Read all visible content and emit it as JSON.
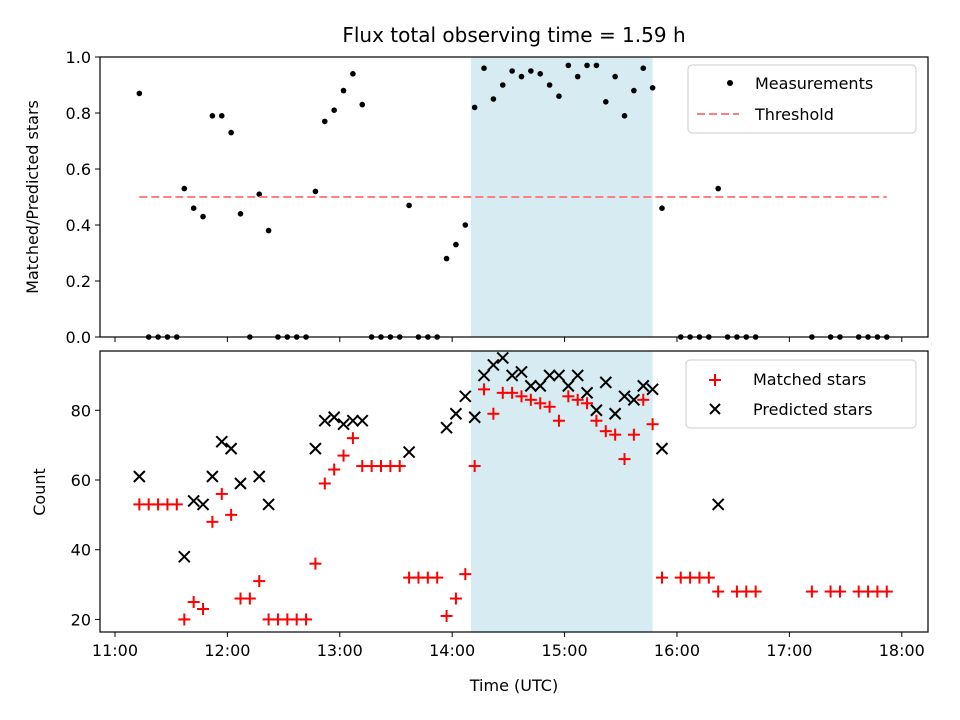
{
  "chart_data": [
    {
      "type": "scatter",
      "title": "Flux total observing time = 1.59 h",
      "xlabel": "",
      "ylabel": "Matched/Predicted stars",
      "x_unit": "time (UTC)",
      "ylim": [
        0,
        1.0
      ],
      "yticks": [
        "0.0",
        "0.2",
        "0.4",
        "0.6",
        "0.8",
        "1.0"
      ],
      "legend_position": "upper-right",
      "highlight_span": [
        "14:10",
        "15:47"
      ],
      "highlight_color": "#add8e6",
      "series": [
        {
          "name": "Measurements",
          "marker": "dot",
          "color": "#000000",
          "points": [
            [
              "11:13",
              0.87
            ],
            [
              "11:18",
              0.0
            ],
            [
              "11:23",
              0.0
            ],
            [
              "11:28",
              0.0
            ],
            [
              "11:33",
              0.0
            ],
            [
              "11:37",
              0.53
            ],
            [
              "11:42",
              0.46
            ],
            [
              "11:47",
              0.43
            ],
            [
              "11:52",
              0.79
            ],
            [
              "11:57",
              0.79
            ],
            [
              "12:02",
              0.73
            ],
            [
              "12:07",
              0.44
            ],
            [
              "12:12",
              0.0
            ],
            [
              "12:17",
              0.51
            ],
            [
              "12:22",
              0.38
            ],
            [
              "12:27",
              0.0
            ],
            [
              "12:32",
              0.0
            ],
            [
              "12:37",
              0.0
            ],
            [
              "12:42",
              0.0
            ],
            [
              "12:47",
              0.52
            ],
            [
              "12:52",
              0.77
            ],
            [
              "12:57",
              0.81
            ],
            [
              "13:02",
              0.88
            ],
            [
              "13:07",
              0.94
            ],
            [
              "13:12",
              0.83
            ],
            [
              "13:17",
              0.0
            ],
            [
              "13:22",
              0.0
            ],
            [
              "13:27",
              0.0
            ],
            [
              "13:32",
              0.0
            ],
            [
              "13:37",
              0.47
            ],
            [
              "13:42",
              0.0
            ],
            [
              "13:47",
              0.0
            ],
            [
              "13:52",
              0.0
            ],
            [
              "13:57",
              0.28
            ],
            [
              "14:02",
              0.33
            ],
            [
              "14:07",
              0.4
            ],
            [
              "14:12",
              0.82
            ],
            [
              "14:17",
              0.96
            ],
            [
              "14:22",
              0.85
            ],
            [
              "14:27",
              0.9
            ],
            [
              "14:32",
              0.95
            ],
            [
              "14:37",
              0.93
            ],
            [
              "14:42",
              0.95
            ],
            [
              "14:47",
              0.94
            ],
            [
              "14:52",
              0.9
            ],
            [
              "14:57",
              0.86
            ],
            [
              "15:02",
              0.97
            ],
            [
              "15:07",
              0.93
            ],
            [
              "15:12",
              0.97
            ],
            [
              "15:17",
              0.97
            ],
            [
              "15:22",
              0.84
            ],
            [
              "15:27",
              0.93
            ],
            [
              "15:32",
              0.79
            ],
            [
              "15:37",
              0.88
            ],
            [
              "15:42",
              0.96
            ],
            [
              "15:47",
              0.89
            ],
            [
              "15:52",
              0.46
            ],
            [
              "16:02",
              0.0
            ],
            [
              "16:07",
              0.0
            ],
            [
              "16:12",
              0.0
            ],
            [
              "16:17",
              0.0
            ],
            [
              "16:22",
              0.53
            ],
            [
              "16:27",
              0.0
            ],
            [
              "16:32",
              0.0
            ],
            [
              "16:37",
              0.0
            ],
            [
              "16:42",
              0.0
            ],
            [
              "17:12",
              0.0
            ],
            [
              "17:22",
              0.0
            ],
            [
              "17:27",
              0.0
            ],
            [
              "17:37",
              0.0
            ],
            [
              "17:42",
              0.0
            ],
            [
              "17:47",
              0.0
            ],
            [
              "17:52",
              0.0
            ]
          ]
        },
        {
          "name": "Threshold",
          "marker": "dashed-line",
          "color": "#ff7f7f",
          "points": [
            [
              "11:13",
              0.5
            ],
            [
              "17:52",
              0.5
            ]
          ]
        }
      ]
    },
    {
      "type": "scatter",
      "title": "",
      "xlabel": "Time (UTC)",
      "ylabel": "Count",
      "x_unit": "time (UTC)",
      "ylim": [
        16.4,
        97.0
      ],
      "yticks": [
        "20",
        "40",
        "60",
        "80"
      ],
      "xlim": [
        "10:52",
        "18:14"
      ],
      "xticks": [
        "11:00",
        "12:00",
        "13:00",
        "14:00",
        "15:00",
        "16:00",
        "17:00",
        "18:00"
      ],
      "legend_position": "upper-right",
      "highlight_span": [
        "14:10",
        "15:47"
      ],
      "highlight_color": "#add8e6",
      "series": [
        {
          "name": "Matched stars",
          "marker": "plus",
          "color": "#ff0000",
          "points": [
            [
              "11:13",
              53
            ],
            [
              "11:18",
              53
            ],
            [
              "11:23",
              53
            ],
            [
              "11:28",
              53
            ],
            [
              "11:33",
              53
            ],
            [
              "11:37",
              20
            ],
            [
              "11:42",
              25
            ],
            [
              "11:47",
              23
            ],
            [
              "11:52",
              48
            ],
            [
              "11:57",
              56
            ],
            [
              "12:02",
              50
            ],
            [
              "12:07",
              26
            ],
            [
              "12:12",
              26
            ],
            [
              "12:17",
              31
            ],
            [
              "12:22",
              20
            ],
            [
              "12:27",
              20
            ],
            [
              "12:32",
              20
            ],
            [
              "12:37",
              20
            ],
            [
              "12:42",
              20
            ],
            [
              "12:47",
              36
            ],
            [
              "12:52",
              59
            ],
            [
              "12:57",
              63
            ],
            [
              "13:02",
              67
            ],
            [
              "13:07",
              72
            ],
            [
              "13:12",
              64
            ],
            [
              "13:17",
              64
            ],
            [
              "13:22",
              64
            ],
            [
              "13:27",
              64
            ],
            [
              "13:32",
              64
            ],
            [
              "13:37",
              32
            ],
            [
              "13:42",
              32
            ],
            [
              "13:47",
              32
            ],
            [
              "13:52",
              32
            ],
            [
              "13:57",
              21
            ],
            [
              "14:02",
              26
            ],
            [
              "14:07",
              33
            ],
            [
              "14:12",
              64
            ],
            [
              "14:17",
              86
            ],
            [
              "14:22",
              79
            ],
            [
              "14:27",
              85
            ],
            [
              "14:32",
              85
            ],
            [
              "14:37",
              84
            ],
            [
              "14:42",
              83
            ],
            [
              "14:47",
              82
            ],
            [
              "14:52",
              81
            ],
            [
              "14:57",
              77
            ],
            [
              "15:02",
              84
            ],
            [
              "15:07",
              83
            ],
            [
              "15:12",
              82
            ],
            [
              "15:17",
              77
            ],
            [
              "15:22",
              74
            ],
            [
              "15:27",
              73
            ],
            [
              "15:32",
              66
            ],
            [
              "15:37",
              73
            ],
            [
              "15:42",
              83
            ],
            [
              "15:47",
              76
            ],
            [
              "15:52",
              32
            ],
            [
              "16:02",
              32
            ],
            [
              "16:07",
              32
            ],
            [
              "16:12",
              32
            ],
            [
              "16:17",
              32
            ],
            [
              "16:22",
              28
            ],
            [
              "16:32",
              28
            ],
            [
              "16:37",
              28
            ],
            [
              "16:42",
              28
            ],
            [
              "17:12",
              28
            ],
            [
              "17:22",
              28
            ],
            [
              "17:27",
              28
            ],
            [
              "17:37",
              28
            ],
            [
              "17:42",
              28
            ],
            [
              "17:47",
              28
            ],
            [
              "17:52",
              28
            ]
          ]
        },
        {
          "name": "Predicted stars",
          "marker": "x",
          "color": "#000000",
          "points": [
            [
              "11:13",
              61
            ],
            [
              "11:37",
              38
            ],
            [
              "11:42",
              54
            ],
            [
              "11:47",
              53
            ],
            [
              "11:52",
              61
            ],
            [
              "11:57",
              71
            ],
            [
              "12:02",
              69
            ],
            [
              "12:07",
              59
            ],
            [
              "12:17",
              61
            ],
            [
              "12:22",
              53
            ],
            [
              "12:47",
              69
            ],
            [
              "12:52",
              77
            ],
            [
              "12:57",
              78
            ],
            [
              "13:02",
              76
            ],
            [
              "13:07",
              77
            ],
            [
              "13:12",
              77
            ],
            [
              "13:37",
              68
            ],
            [
              "13:57",
              75
            ],
            [
              "14:02",
              79
            ],
            [
              "14:07",
              84
            ],
            [
              "14:12",
              78
            ],
            [
              "14:17",
              90
            ],
            [
              "14:22",
              93
            ],
            [
              "14:27",
              95
            ],
            [
              "14:32",
              90
            ],
            [
              "14:37",
              91
            ],
            [
              "14:42",
              87
            ],
            [
              "14:47",
              87
            ],
            [
              "14:52",
              90
            ],
            [
              "14:57",
              90
            ],
            [
              "15:02",
              87
            ],
            [
              "15:07",
              90
            ],
            [
              "15:12",
              85
            ],
            [
              "15:17",
              80
            ],
            [
              "15:22",
              88
            ],
            [
              "15:27",
              79
            ],
            [
              "15:32",
              84
            ],
            [
              "15:37",
              83
            ],
            [
              "15:42",
              87
            ],
            [
              "15:47",
              86
            ],
            [
              "15:52",
              69
            ],
            [
              "16:22",
              53
            ]
          ]
        }
      ]
    }
  ]
}
